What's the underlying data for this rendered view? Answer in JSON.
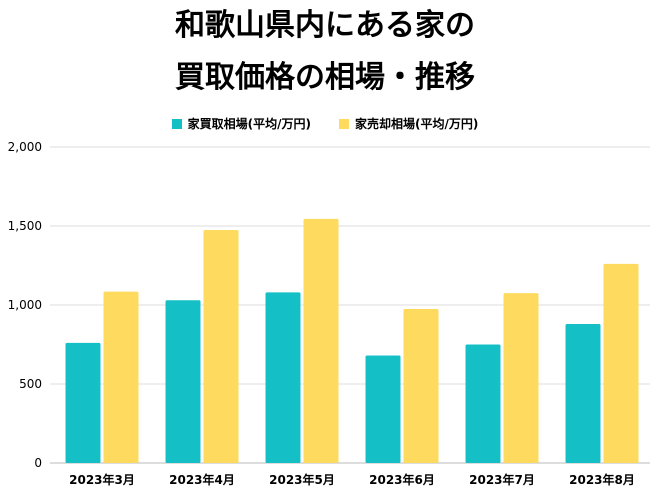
{
  "title_line1": "和歌山県内にある家の",
  "title_line2": "買取価格の相場・推移",
  "chart_data": {
    "type": "bar",
    "title": "和歌山県内にある家の買取価格の相場・推移",
    "categories": [
      "2023年3月",
      "2023年4月",
      "2023年5月",
      "2023年6月",
      "2023年7月",
      "2023年8月"
    ],
    "series": [
      {
        "name": "家買取相場(平均/万円)",
        "color": "#14C0C5",
        "values": [
          760,
          1030,
          1080,
          680,
          750,
          880
        ]
      },
      {
        "name": "家売却相場(平均/万円)",
        "color": "#FEDB5E",
        "values": [
          1085,
          1475,
          1545,
          975,
          1075,
          1260
        ]
      }
    ],
    "yticks": [
      "0",
      "500",
      "1,000",
      "1,500",
      "2,000"
    ],
    "ylim": [
      0,
      2000
    ],
    "grid": true,
    "legend_position": "top-center"
  }
}
